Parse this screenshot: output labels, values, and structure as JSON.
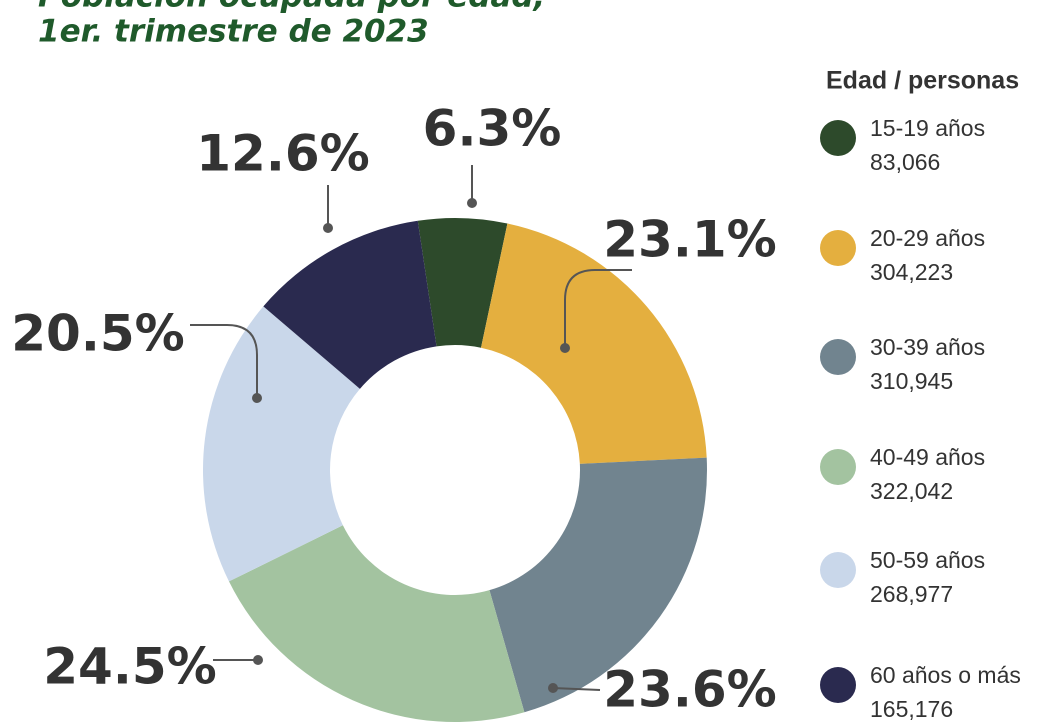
{
  "chart_data": {
    "type": "pie",
    "title": "Población ocupada por edad,",
    "subtitle": "1er. trimestre de 2023",
    "legend_title": "Edad / personas",
    "categories": [
      "15-19 años",
      "20-29 años",
      "30-39 años",
      "40-49 años",
      "50-59 años",
      "60 años o más"
    ],
    "values": [
      6.3,
      23.1,
      23.6,
      24.5,
      20.5,
      12.6
    ],
    "value_labels": [
      "6.3%",
      "23.1%",
      "23.6%",
      "24.5%",
      "20.5%",
      "12.6%"
    ],
    "counts": [
      83066,
      304223,
      310945,
      322042,
      268977,
      165176
    ],
    "count_labels": [
      "83,066",
      "304,223",
      "310,945",
      "322,042",
      "268,977",
      "165,176"
    ],
    "colors": [
      "#2d4a2b",
      "#e4af3f",
      "#71848f",
      "#a3c3a0",
      "#c9d7ea",
      "#2a2a4f"
    ],
    "donut": true
  }
}
